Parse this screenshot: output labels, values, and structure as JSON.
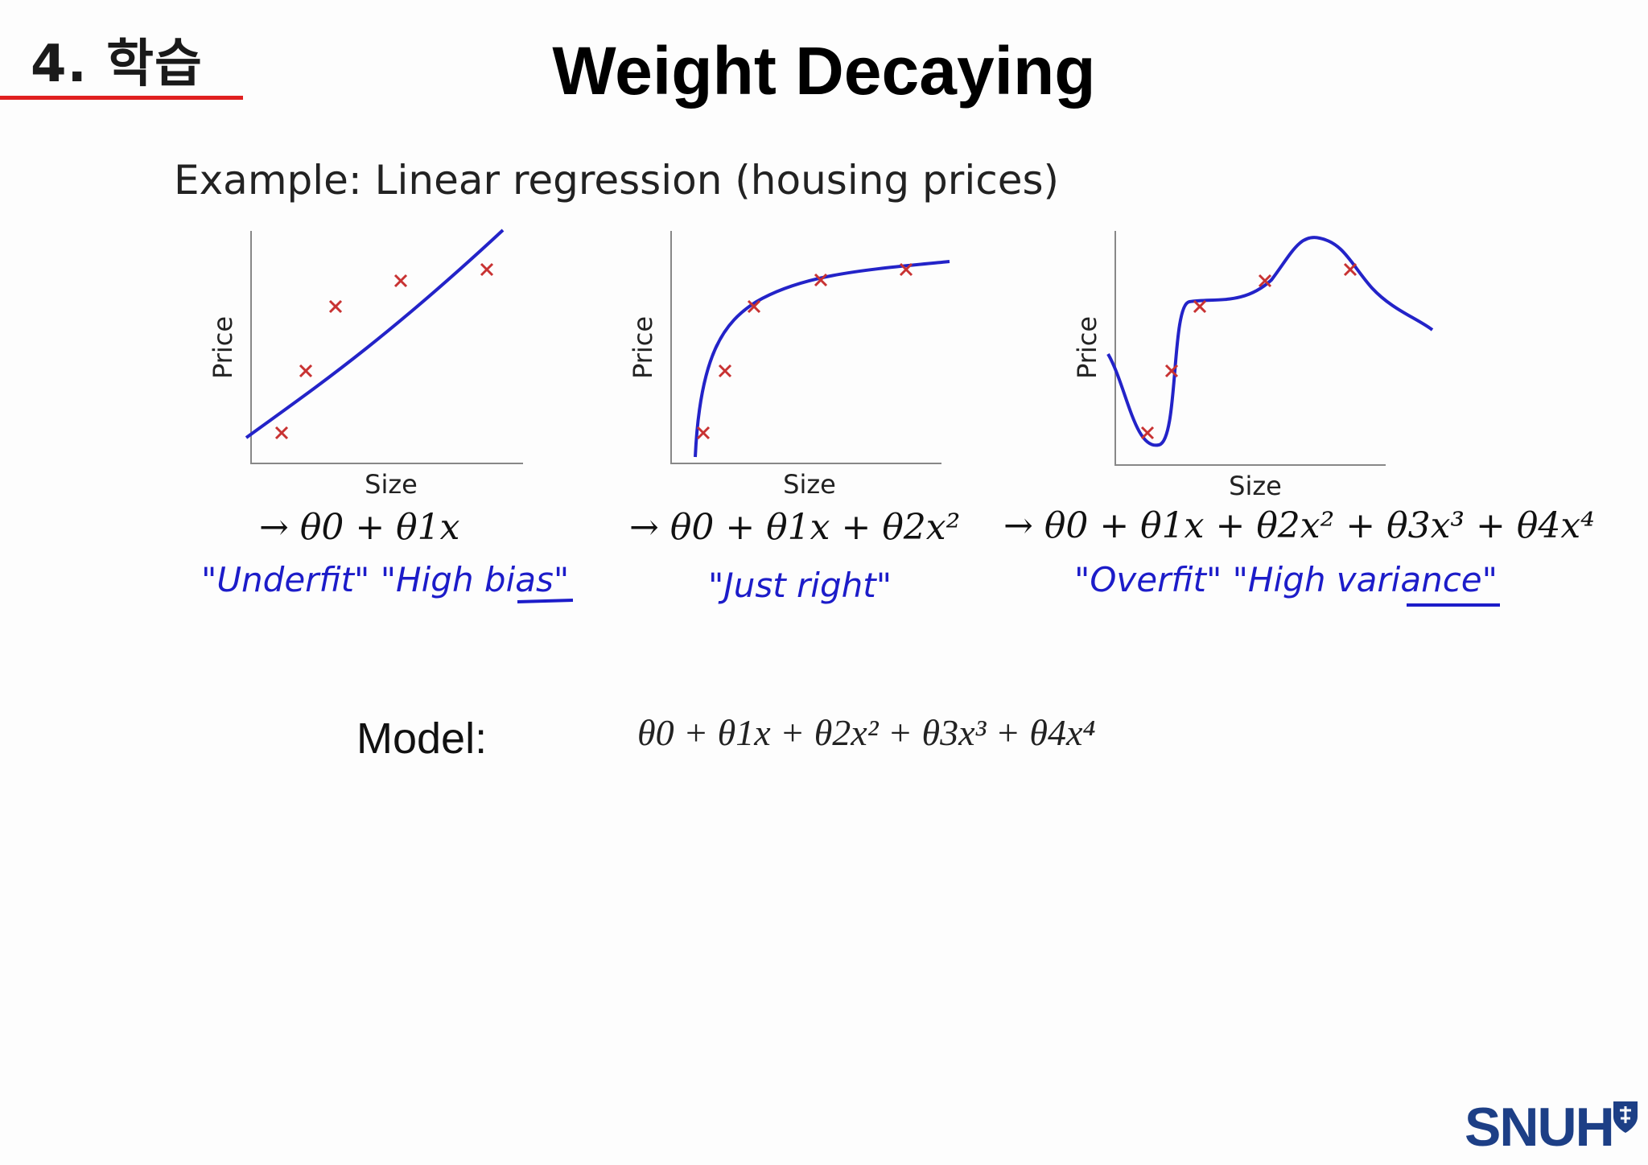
{
  "header": {
    "section": "4. 학습",
    "title": "Weight Decaying",
    "accent_color": "#e02020"
  },
  "example": {
    "heading": "Example: Linear regression (housing prices)"
  },
  "chart_data": [
    {
      "type": "scatter",
      "title": "",
      "xlabel": "Size",
      "ylabel": "Price",
      "points": [
        [
          1.5,
          1.0
        ],
        [
          2.5,
          3.5
        ],
        [
          3.5,
          6.0
        ],
        [
          6.0,
          7.0
        ],
        [
          9.0,
          7.5
        ]
      ],
      "fit": "linear",
      "formula": "→ θ0 + θ1x",
      "annotation": "\"Underfit\"  \"High bias\""
    },
    {
      "type": "scatter",
      "title": "",
      "xlabel": "Size",
      "ylabel": "Price",
      "points": [
        [
          1.0,
          1.0
        ],
        [
          1.8,
          3.5
        ],
        [
          3.0,
          6.0
        ],
        [
          5.5,
          7.0
        ],
        [
          8.5,
          7.5
        ]
      ],
      "fit": "quadratic",
      "formula": "→ θ0 + θ1x + θ2x²",
      "annotation": "\"Just right\""
    },
    {
      "type": "scatter",
      "title": "",
      "xlabel": "Size",
      "ylabel": "Price",
      "points": [
        [
          1.2,
          1.0
        ],
        [
          2.0,
          3.5
        ],
        [
          3.0,
          6.0
        ],
        [
          5.0,
          7.0
        ],
        [
          7.5,
          7.5
        ]
      ],
      "fit": "quartic",
      "formula": "→ θ0 + θ1x + θ2x² + θ3x³ + θ4x⁴",
      "annotation": "\"Overfit\"  \"High variance\""
    }
  ],
  "model": {
    "label": "Model:",
    "formula": "θ0 + θ1x + θ2x² + θ3x³ + θ4x⁴"
  },
  "logo": {
    "text": "SNUH",
    "color": "#1d3f86"
  },
  "colors": {
    "curve": "#2323c8",
    "marker": "#c83232",
    "axis": "#888888"
  }
}
